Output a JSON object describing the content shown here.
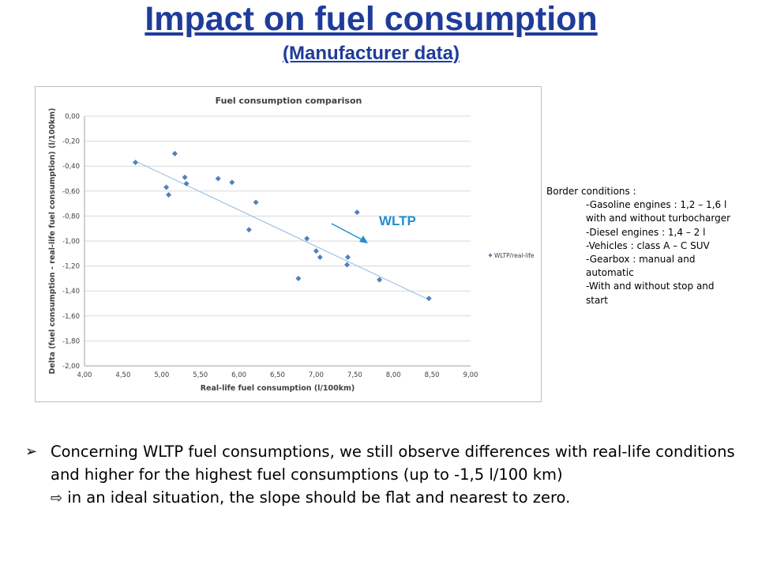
{
  "slide": {
    "title": "Impact on fuel consumption",
    "subtitle": "(Manufacturer data)",
    "annotation_label": "WLTP",
    "conditions": {
      "heading": "Border conditions :",
      "items": [
        "-Gasoline engines : 1,2 – 1,6 l with and without turbocharger",
        "-Diesel engines : 1,4 – 2 l",
        "-Vehicles : class A – C SUV",
        "-Gearbox : manual and automatic",
        "-With and without stop and start"
      ]
    },
    "bullet": {
      "marker": "➢",
      "arrow": "⇨",
      "line1": "Concerning WLTP fuel consumptions, we still observe differences with real-life conditions and higher for the highest fuel consumptions (up to -1,5 l/100 km)",
      "line2": "in an ideal situation, the slope should be flat and nearest to zero."
    }
  },
  "chart_data": {
    "type": "scatter",
    "title": "Fuel consumption comparison",
    "xlabel": "Real-life fuel consumption (l/100km)",
    "ylabel": "Delta (fuel consumption - real-life fuel consumption) (l/100km)",
    "xlim": [
      4.0,
      9.0
    ],
    "ylim": [
      -2.0,
      0.0
    ],
    "x_ticks": [
      "4,00",
      "4,50",
      "5,00",
      "5,50",
      "6,00",
      "6,50",
      "7,00",
      "7,50",
      "8,00",
      "8,50",
      "9,00"
    ],
    "y_ticks": [
      "0,00",
      "-0,20",
      "-0,40",
      "-0,60",
      "-0,80",
      "-1,00",
      "-1,20",
      "-1,40",
      "-1,60",
      "-1,80",
      "-2,00"
    ],
    "grid": true,
    "legend_position": "right",
    "series": [
      {
        "name": "WLTP/real-life",
        "color": "#4f81bd",
        "marker": "diamond",
        "points": [
          [
            4.66,
            -0.37
          ],
          [
            5.06,
            -0.57
          ],
          [
            5.09,
            -0.63
          ],
          [
            5.17,
            -0.3
          ],
          [
            5.3,
            -0.49
          ],
          [
            5.32,
            -0.54
          ],
          [
            5.73,
            -0.5
          ],
          [
            5.91,
            -0.53
          ],
          [
            6.13,
            -0.91
          ],
          [
            6.22,
            -0.69
          ],
          [
            6.77,
            -1.3
          ],
          [
            6.88,
            -0.98
          ],
          [
            7.0,
            -1.08
          ],
          [
            7.05,
            -1.13
          ],
          [
            7.4,
            -1.19
          ],
          [
            7.41,
            -1.13
          ],
          [
            7.53,
            -0.77
          ],
          [
            7.82,
            -1.31
          ],
          [
            8.46,
            -1.46
          ]
        ]
      }
    ],
    "trendline": {
      "color": "#9dc3e6",
      "from": [
        4.66,
        -0.36
      ],
      "to": [
        8.46,
        -1.47
      ]
    }
  }
}
